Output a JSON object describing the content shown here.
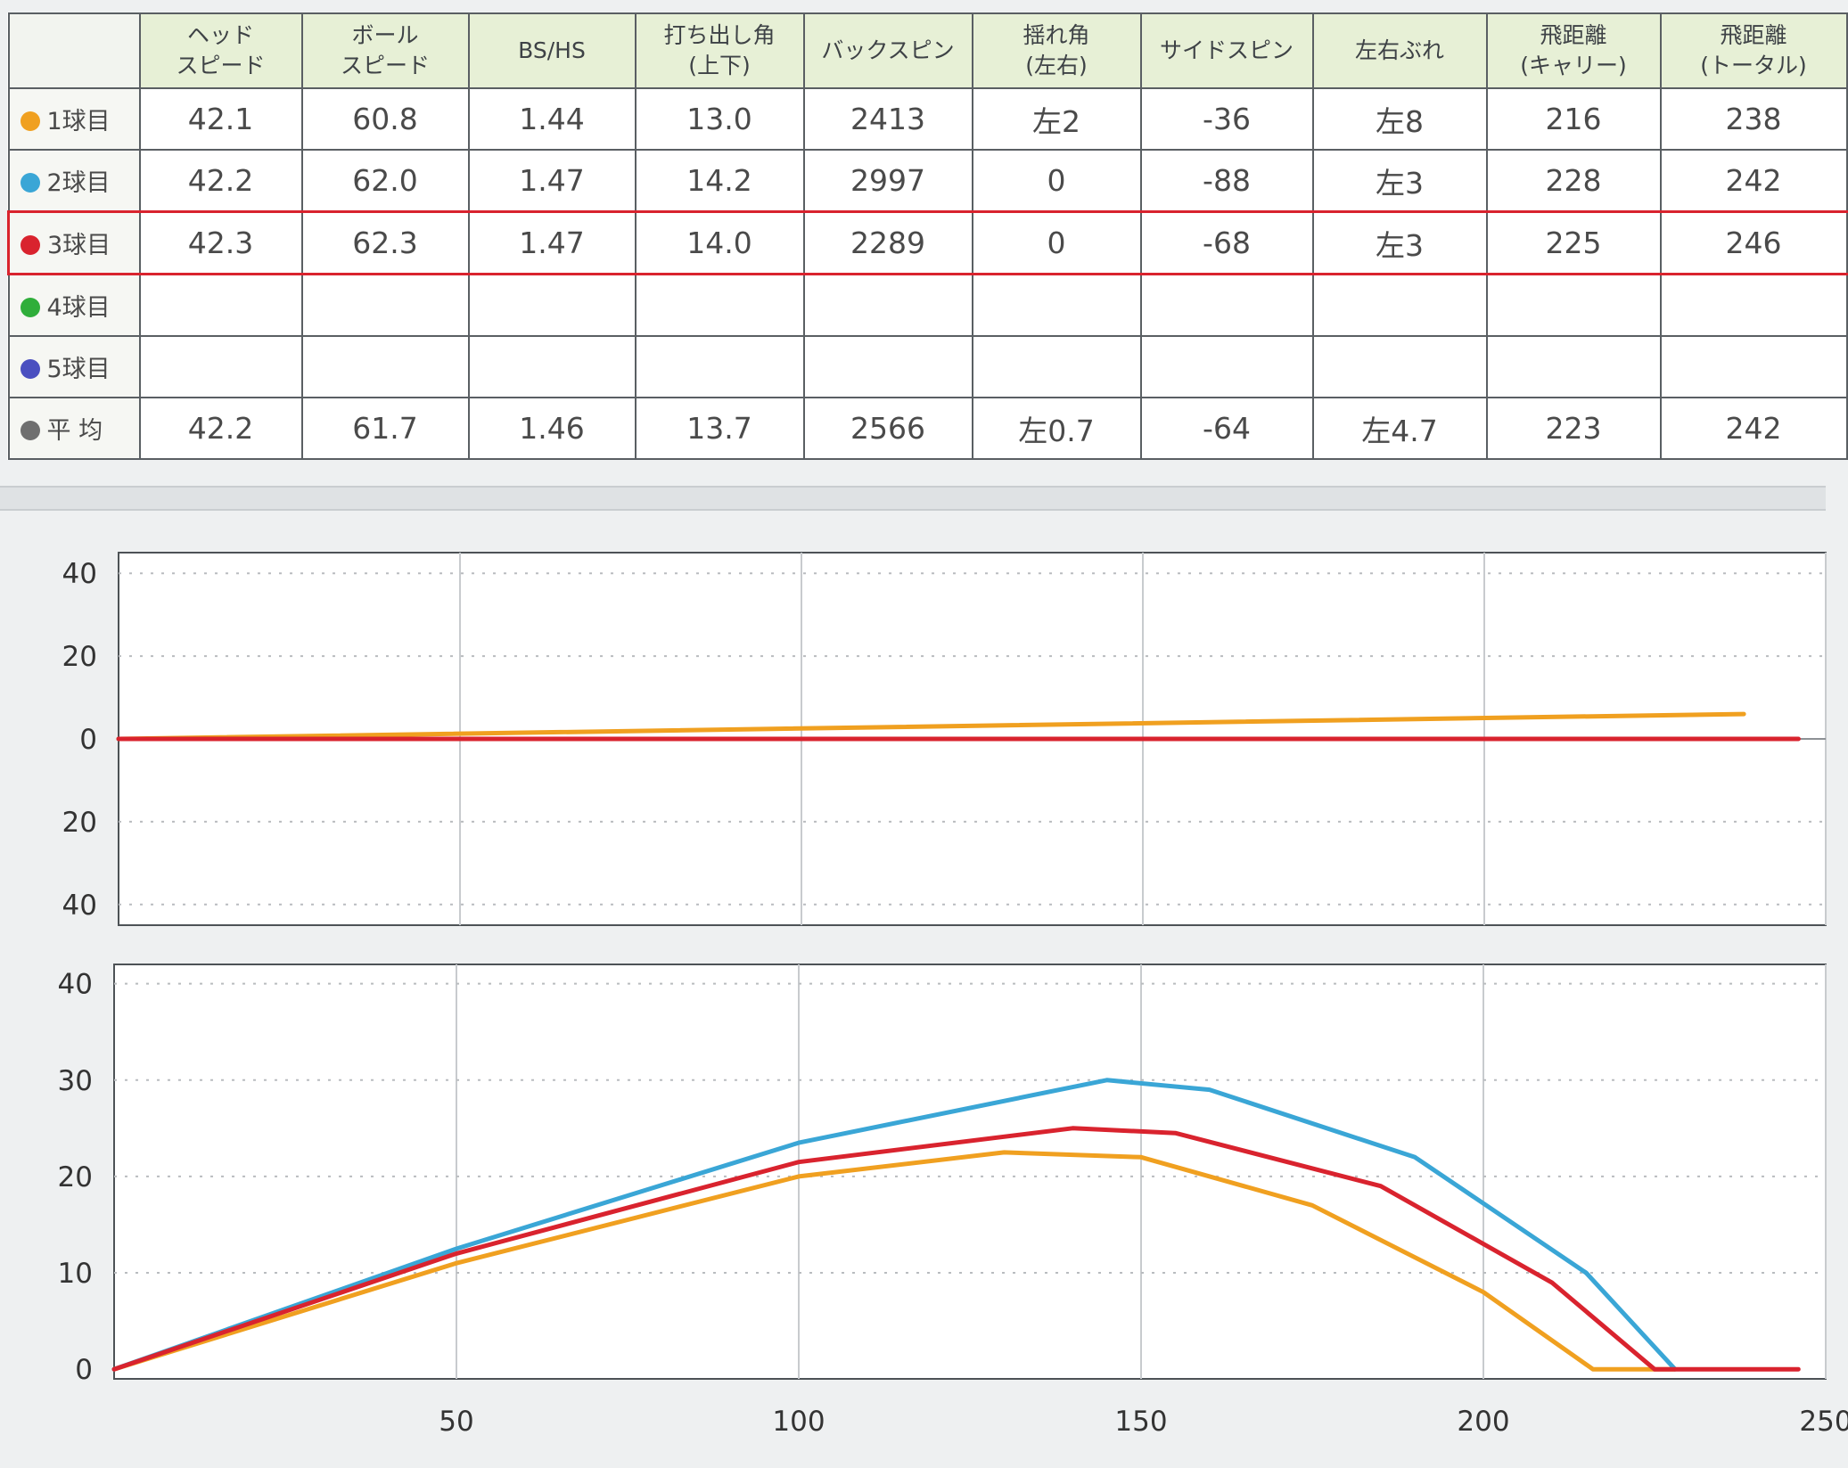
{
  "table": {
    "headers": [
      "",
      "ヘッド\nスピード",
      "ボール\nスピード",
      "BS/HS",
      "打ち出し角\n(上下)",
      "バックスピン",
      "揺れ角\n(左右)",
      "サイドスピン",
      "左右ぶれ",
      "飛距離\n(キャリー)",
      "飛距離\n(トータル)"
    ],
    "rows": [
      {
        "label": "1球目",
        "color": "#f0a020",
        "values": [
          "42.1",
          "60.8",
          "1.44",
          "13.0",
          "2413",
          "左2",
          "-36",
          "左8",
          "216",
          "238"
        ]
      },
      {
        "label": "2球目",
        "color": "#3aa6d6",
        "values": [
          "42.2",
          "62.0",
          "1.47",
          "14.2",
          "2997",
          "0",
          "-88",
          "左3",
          "228",
          "242"
        ]
      },
      {
        "label": "3球目",
        "color": "#d9232e",
        "highlight": true,
        "values": [
          "42.3",
          "62.3",
          "1.47",
          "14.0",
          "2289",
          "0",
          "-68",
          "左3",
          "225",
          "246"
        ]
      },
      {
        "label": "4球目",
        "color": "#2fae3a",
        "values": [
          "",
          "",
          "",
          "",
          "",
          "",
          "",
          "",
          "",
          ""
        ]
      },
      {
        "label": "5球目",
        "color": "#4a4fc0",
        "values": [
          "",
          "",
          "",
          "",
          "",
          "",
          "",
          "",
          "",
          ""
        ]
      },
      {
        "label": "平 均",
        "color": "#6f6f6f",
        "values": [
          "42.2",
          "61.7",
          "1.46",
          "13.7",
          "2566",
          "左0.7",
          "-64",
          "左4.7",
          "223",
          "242"
        ]
      }
    ]
  },
  "chart_data": [
    {
      "type": "line",
      "title": "",
      "xlabel": "",
      "ylabel": "",
      "xlim": [
        0,
        250
      ],
      "ylim": [
        -45,
        45
      ],
      "yticks": [
        40,
        20,
        0,
        -20,
        -40
      ],
      "ytick_labels": [
        "40",
        "20",
        "0",
        "20",
        "40"
      ],
      "xgrid": [
        50,
        100,
        150,
        200,
        250
      ],
      "series": [
        {
          "color": "#3aa6d6",
          "x": [
            0,
            242
          ],
          "y": [
            0,
            0
          ]
        },
        {
          "color": "#f0a020",
          "x": [
            0,
            238
          ],
          "y": [
            0,
            6
          ]
        },
        {
          "color": "#d9232e",
          "x": [
            0,
            246
          ],
          "y": [
            0,
            0
          ]
        }
      ]
    },
    {
      "type": "line",
      "title": "",
      "xlabel": "",
      "ylabel": "",
      "xlim": [
        0,
        250
      ],
      "ylim": [
        -1,
        42
      ],
      "yticks": [
        0,
        10,
        20,
        30,
        40
      ],
      "xticks": [
        50,
        100,
        150,
        200,
        250
      ],
      "series": [
        {
          "color": "#f0a020",
          "x": [
            0,
            50,
            100,
            130,
            150,
            175,
            200,
            216,
            228
          ],
          "y": [
            0,
            11,
            20,
            22.5,
            22,
            17,
            8,
            0,
            0
          ]
        },
        {
          "color": "#3aa6d6",
          "x": [
            0,
            50,
            100,
            145,
            160,
            190,
            215,
            228
          ],
          "y": [
            0,
            12.5,
            23.5,
            30,
            29,
            22,
            10,
            0
          ]
        },
        {
          "color": "#d9232e",
          "x": [
            0,
            50,
            100,
            140,
            155,
            185,
            210,
            225,
            246
          ],
          "y": [
            0,
            12,
            21.5,
            25,
            24.5,
            19,
            9,
            0,
            0
          ]
        }
      ]
    }
  ]
}
